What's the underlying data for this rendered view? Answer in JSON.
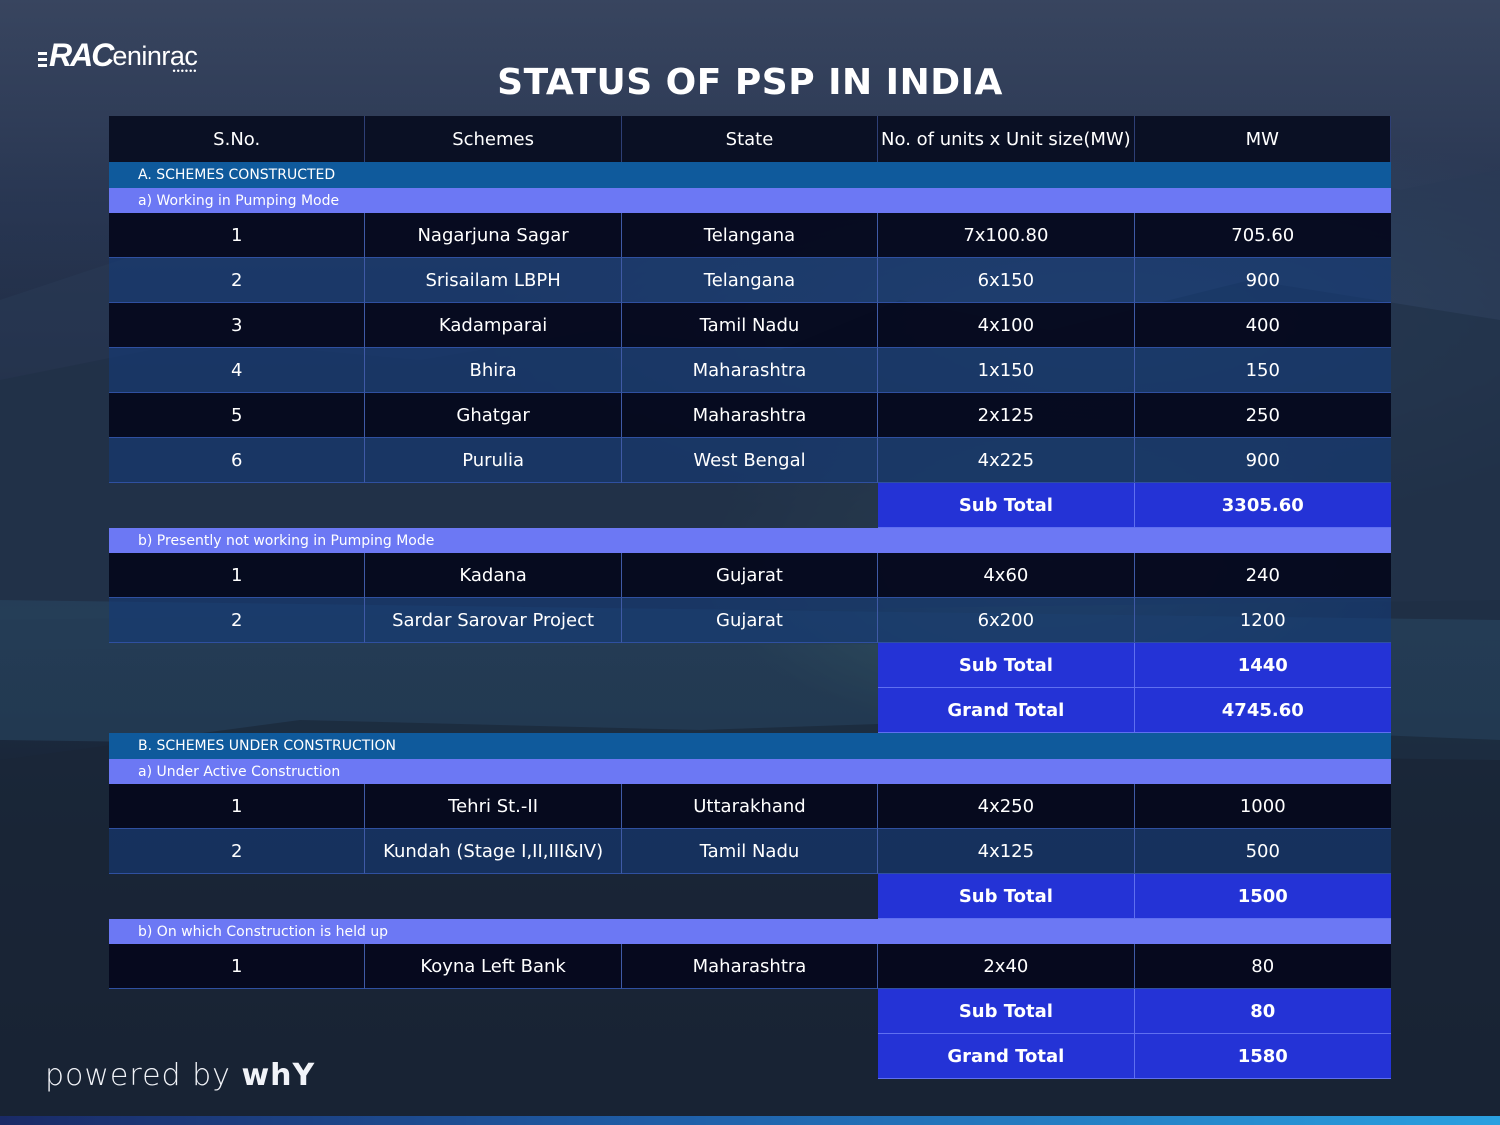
{
  "brand": {
    "logo_bold": "RAC",
    "logo_thin": "eninrac",
    "logo_dots": "••••••"
  },
  "title": "STATUS OF PSP IN INDIA",
  "footer": {
    "powered_prefix": "powered by ",
    "powered_brand": "whY"
  },
  "table": {
    "headers": [
      "S.No.",
      "Schemes",
      "State",
      "No. of units x Unit size(MW)",
      "MW"
    ],
    "sectionA": {
      "label": "A. SCHEMES CONSTRUCTED",
      "groupA": {
        "label": "a) Working in Pumping Mode",
        "rows": [
          {
            "sno": "1",
            "scheme": "Nagarjuna Sagar",
            "state": "Telangana",
            "units": "7x100.80",
            "mw": "705.60"
          },
          {
            "sno": "2",
            "scheme": "Srisailam LBPH",
            "state": "Telangana",
            "units": "6x150",
            "mw": "900"
          },
          {
            "sno": "3",
            "scheme": "Kadamparai",
            "state": "Tamil Nadu",
            "units": "4x100",
            "mw": "400"
          },
          {
            "sno": "4",
            "scheme": "Bhira",
            "state": "Maharashtra",
            "units": "1x150",
            "mw": "150"
          },
          {
            "sno": "5",
            "scheme": "Ghatgar",
            "state": "Maharashtra",
            "units": "2x125",
            "mw": "250"
          },
          {
            "sno": "6",
            "scheme": "Purulia",
            "state": "West Bengal",
            "units": "4x225",
            "mw": "900"
          }
        ],
        "subtotal_label": "Sub Total",
        "subtotal_value": "3305.60"
      },
      "groupB": {
        "label": "b) Presently not working in Pumping Mode",
        "rows": [
          {
            "sno": "1",
            "scheme": "Kadana",
            "state": "Gujarat",
            "units": "4x60",
            "mw": "240"
          },
          {
            "sno": "2",
            "scheme": "Sardar Sarovar Project",
            "state": "Gujarat",
            "units": "6x200",
            "mw": "1200"
          }
        ],
        "subtotal_label": "Sub Total",
        "subtotal_value": "1440"
      },
      "grandtotal_label": "Grand Total",
      "grandtotal_value": "4745.60"
    },
    "sectionB": {
      "label": "B. SCHEMES UNDER CONSTRUCTION",
      "groupA": {
        "label": "a) Under Active Construction",
        "rows": [
          {
            "sno": "1",
            "scheme": "Tehri St.-II",
            "state": "Uttarakhand",
            "units": "4x250",
            "mw": "1000"
          },
          {
            "sno": "2",
            "scheme": "Kundah (Stage I,II,III&IV)",
            "state": "Tamil Nadu",
            "units": "4x125",
            "mw": "500"
          }
        ],
        "subtotal_label": "Sub Total",
        "subtotal_value": "1500"
      },
      "groupB": {
        "label": "b) On which Construction is held up",
        "rows": [
          {
            "sno": "1",
            "scheme": "Koyna Left Bank",
            "state": "Maharashtra",
            "units": "2x40",
            "mw": "80"
          }
        ],
        "subtotal_label": "Sub Total",
        "subtotal_value": "80"
      },
      "grandtotal_label": "Grand Total",
      "grandtotal_value": "1580"
    }
  }
}
